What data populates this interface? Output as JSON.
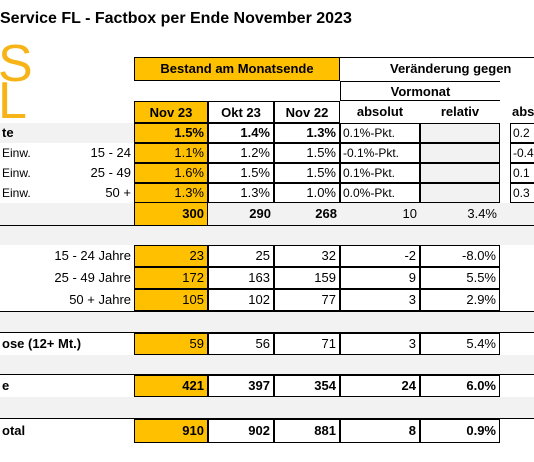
{
  "title": "Service FL - Factbox per Ende November 2023",
  "logo": {
    "top": "S",
    "bottom": "L",
    "color": "#f7b418"
  },
  "colors": {
    "highlight": "#ffc000",
    "shade": "#f2f2f2"
  },
  "headers": {
    "bestand": "Bestand am Monatsende",
    "veraenderung": "Veränderung gegen",
    "vormonat": "Vormonat",
    "nov23": "Nov 23",
    "okt23": "Okt 23",
    "nov22": "Nov 22",
    "absolut": "absolut",
    "relativ": "relativ",
    "abs_cut": "abs"
  },
  "rows": {
    "rate": {
      "label": "te",
      "nov23": "1.5%",
      "okt23": "1.4%",
      "nov22": "1.3%",
      "abs": "0.1%-Pkt.",
      "rel": "",
      "cut": "0.2"
    },
    "rate1524": {
      "label1": "Einw.",
      "label2": "15 - 24",
      "nov23": "1.1%",
      "okt23": "1.2%",
      "nov22": "1.5%",
      "abs": "-0.1%-Pkt.",
      "rel": "",
      "cut": "-0.4"
    },
    "rate2549": {
      "label1": "Einw.",
      "label2": "25 - 49",
      "nov23": "1.6%",
      "okt23": "1.5%",
      "nov22": "1.5%",
      "abs": "0.1%-Pkt.",
      "rel": "",
      "cut": "0.1"
    },
    "rate50": {
      "label1": "Einw.",
      "label2": "50 +",
      "nov23": "1.3%",
      "okt23": "1.3%",
      "nov22": "1.0%",
      "abs": "0.0%-Pkt.",
      "rel": "",
      "cut": "0.3"
    },
    "total1": {
      "nov23": "300",
      "okt23": "290",
      "nov22": "268",
      "abs": "10",
      "rel": "3.4%"
    },
    "age1524": {
      "label": "15 - 24 Jahre",
      "nov23": "23",
      "okt23": "25",
      "nov22": "32",
      "abs": "-2",
      "rel": "-8.0%"
    },
    "age2549": {
      "label": "25 - 49 Jahre",
      "nov23": "172",
      "okt23": "163",
      "nov22": "159",
      "abs": "9",
      "rel": "5.5%"
    },
    "age50": {
      "label": "50 + Jahre",
      "nov23": "105",
      "okt23": "102",
      "nov22": "77",
      "abs": "3",
      "rel": "2.9%"
    },
    "lang": {
      "label": "ose (12+ Mt.)",
      "nov23": "59",
      "okt23": "56",
      "nov22": "71",
      "abs": "3",
      "rel": "5.4%"
    },
    "other": {
      "label": "e",
      "nov23": "421",
      "okt23": "397",
      "nov22": "354",
      "abs": "24",
      "rel": "6.0%"
    },
    "total": {
      "label": "otal",
      "nov23": "910",
      "okt23": "902",
      "nov22": "881",
      "abs": "8",
      "rel": "0.9%"
    }
  }
}
